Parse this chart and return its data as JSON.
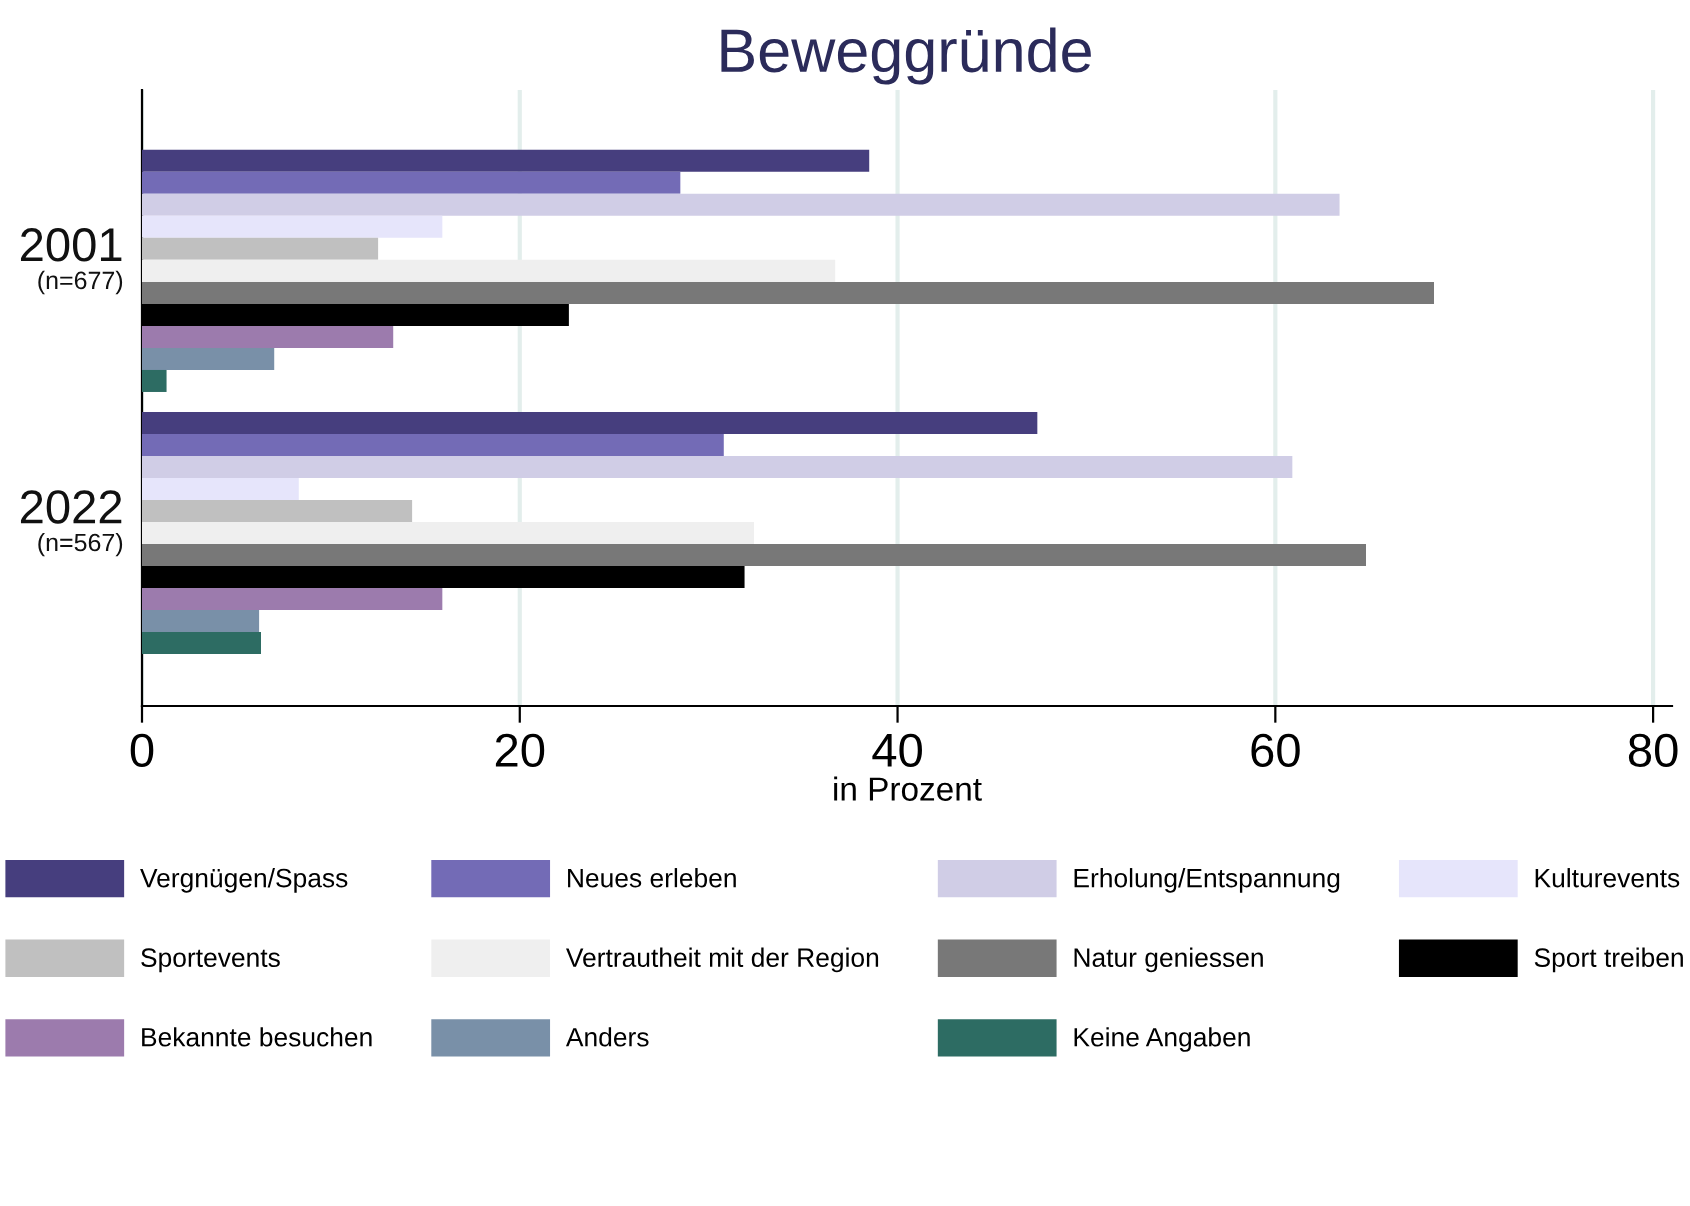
{
  "chart_data": {
    "type": "bar",
    "orientation": "horizontal",
    "title": "Beweggründe",
    "xlabel": "in Prozent",
    "categories": [
      "2001\n(n=677)",
      "2022\n(n=567)"
    ],
    "xlim": [
      0,
      81
    ],
    "xticks": [
      0,
      20,
      40,
      60,
      80
    ],
    "grid": "x",
    "legend": "bottom",
    "series": [
      {
        "name": "Vergnügen/Spass",
        "color": "#463e7e",
        "values": [
          38.5,
          47.4
        ]
      },
      {
        "name": "Neues erleben",
        "color": "#736bb6",
        "values": [
          28.5,
          30.8
        ]
      },
      {
        "name": "Erholung/Entspannung",
        "color": "#d0cde6",
        "values": [
          63.4,
          60.9
        ]
      },
      {
        "name": "Kulturevents",
        "color": "#e6e5fb",
        "values": [
          15.9,
          8.3
        ]
      },
      {
        "name": "Sportevents",
        "color": "#c0c0c0",
        "values": [
          12.5,
          14.3
        ]
      },
      {
        "name": "Vertrautheit mit der Region",
        "color": "#efefef",
        "values": [
          36.7,
          32.4
        ]
      },
      {
        "name": "Natur geniessen",
        "color": "#787878",
        "values": [
          68.4,
          64.8
        ]
      },
      {
        "name": "Sport treiben",
        "color": "#000000",
        "values": [
          22.6,
          31.9
        ]
      },
      {
        "name": "Bekannte besuchen",
        "color": "#9c7bad",
        "values": [
          13.3,
          15.9
        ]
      },
      {
        "name": "Anders",
        "color": "#7990a8",
        "values": [
          7.0,
          6.2
        ]
      },
      {
        "name": "Keine Angaben",
        "color": "#2d6c63",
        "values": [
          1.3,
          6.3
        ]
      }
    ]
  }
}
